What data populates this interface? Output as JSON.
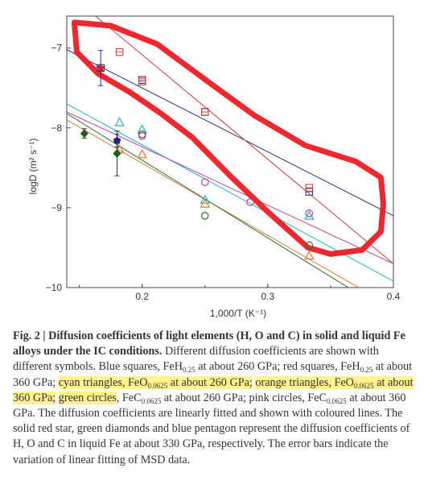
{
  "chart_data": {
    "type": "scatter",
    "title": "",
    "xlabel": "1,000/T (K⁻¹)",
    "ylabel": "logD (m² s⁻¹)",
    "xlim": [
      0.14,
      0.4
    ],
    "ylim": [
      -10,
      -6.6
    ],
    "xticks": [
      0.2,
      0.3,
      0.4
    ],
    "xtick_labels": [
      "0.2",
      "0.3",
      "0.4"
    ],
    "yticks": [
      -7,
      -8,
      -9,
      -10
    ],
    "ytick_labels": [
      "−7",
      "−8",
      "−9",
      "−10"
    ],
    "grid": false,
    "series": [
      {
        "name": "Blue squares, FeH0.25 at about 260 GPa",
        "color": "#2e2e8a",
        "marker": "square-open",
        "x": [
          0.167,
          0.2,
          0.25,
          0.333
        ],
        "y": [
          -7.25,
          -7.4,
          -7.8,
          -8.8
        ],
        "fit": [
          [
            0.14,
            -7.02
          ],
          [
            0.4,
            -9.1
          ]
        ]
      },
      {
        "name": "red squares, FeH0.25 at about 360 GPa",
        "color": "#d23a3a",
        "marker": "square-open",
        "x": [
          0.182,
          0.2,
          0.25,
          0.333
        ],
        "y": [
          -7.05,
          -7.42,
          -7.8,
          -8.75
        ],
        "fit": [
          [
            0.14,
            -6.3
          ],
          [
            0.4,
            -9.7
          ]
        ]
      },
      {
        "name": "cyan triangles, FeO0.0625 at about 260 GPa",
        "color": "#1fb8c8",
        "marker": "triangle-open",
        "x": [
          0.182,
          0.2,
          0.25,
          0.333
        ],
        "y": [
          -7.93,
          -8.02,
          -8.9,
          -9.1
        ],
        "fit": [
          [
            0.14,
            -7.7
          ],
          [
            0.4,
            -9.92
          ]
        ]
      },
      {
        "name": "orange triangles, FeO0.0625 at about 360 GPa",
        "color": "#e27b2a",
        "marker": "triangle-open",
        "x": [
          0.182,
          0.2,
          0.25,
          0.333
        ],
        "y": [
          -8.27,
          -8.33,
          -8.95,
          -9.6
        ],
        "fit": [
          [
            0.14,
            -7.9
          ],
          [
            0.4,
            -10.25
          ]
        ]
      },
      {
        "name": "green circles, FeC0.0625 at about 260 GPa",
        "color": "#3d6e3d",
        "marker": "circle-open",
        "x": [
          0.2,
          0.25,
          0.333
        ],
        "y": [
          -8.08,
          -9.1,
          -9.47
        ],
        "fit": [
          [
            0.14,
            -7.82
          ],
          [
            0.4,
            -10.35
          ]
        ]
      },
      {
        "name": "pink circles, FeC0.0625 at about 360 GPa",
        "color": "#c2409c",
        "marker": "circle-open",
        "x": [
          0.2,
          0.25,
          0.286,
          0.333
        ],
        "y": [
          -8.1,
          -8.68,
          -8.93,
          -9.07
        ],
        "fit": [
          [
            0.14,
            -7.8
          ],
          [
            0.4,
            -9.7
          ]
        ]
      },
      {
        "name": "solid red star, H in liquid Fe at about 330 GPa",
        "color": "#d0203a",
        "marker": "star",
        "x": [
          0.167
        ],
        "y": [
          -7.25
        ],
        "error": [
          0.22
        ]
      },
      {
        "name": "green diamonds, O in liquid Fe at about 330 GPa",
        "color": "#1f5a1f",
        "marker": "diamond",
        "x": [
          0.154,
          0.18
        ],
        "y": [
          -8.07,
          -8.32
        ],
        "error": [
          0.06,
          0.28
        ]
      },
      {
        "name": "blue pentagon, C in liquid Fe at about 330 GPa",
        "color": "#26268a",
        "marker": "pentagon",
        "x": [
          0.18
        ],
        "y": [
          -8.16
        ],
        "error": [
          0.08
        ]
      }
    ],
    "annotations": [
      {
        "type": "freehand-outline",
        "color": "#ee1c25",
        "encloses": "H diffusion data and fit lines (upper region)"
      }
    ]
  },
  "caption": {
    "fig_label": "Fig. 2 |",
    "title": "Diffusion coefficients of light elements (H, O and C) in solid and liquid Fe alloys under the IC conditions.",
    "line3_a": "Different diffusion coefficients are shown with different symbols. Blue squares, FeH",
    "sub_025": "0.25",
    "line3_b": " at about 260 GPa; red squares, FeH",
    "line3_c": " at about 360 GPa;",
    "hl1_a": "cyan triangles, FeO",
    "sub_00625": "0.0625",
    "hl1_b": " at about 260 GPa;",
    "hl2_a": "orange triangles, FeO",
    "hl2_b": " at about 360 GPa;",
    "green_a": "green circles",
    "green_b": ", FeC",
    "green_c": " at about 260 GPa; pink circles, FeC",
    "tail": " at about 360 GPa. The diffusion coefficients are linearly fitted and shown with coloured lines. The solid red star, green diamonds and blue pentagon represent the diffusion coefficients of H, O and C in liquid Fe at about 330 GPa, respectively. The error bars indicate the variation of linear fitting of MSD data."
  }
}
